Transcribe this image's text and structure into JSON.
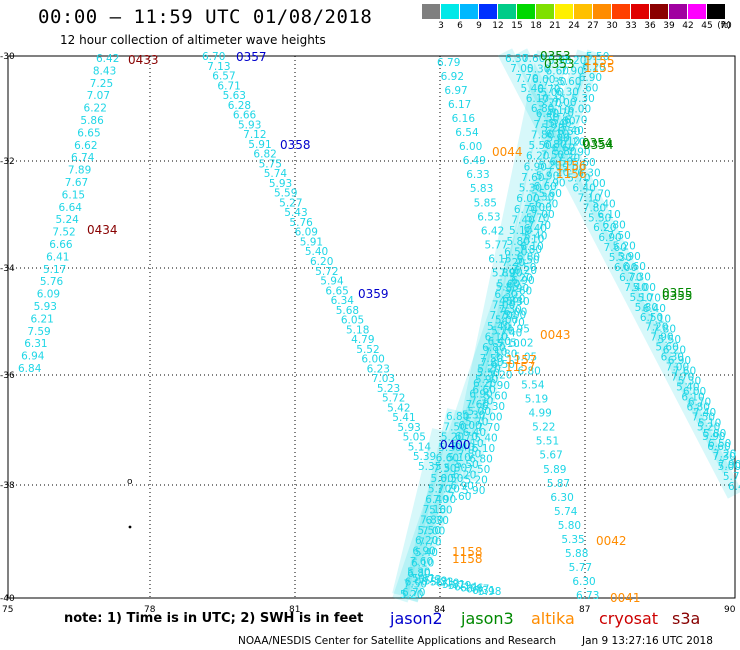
{
  "title": "00:00 – 11:59 UTC 01/08/2018",
  "subtitle": "12 hour collection of altimeter wave heights",
  "legend": {
    "levels": [
      "3",
      "6",
      "9",
      "12",
      "15",
      "18",
      "21",
      "24",
      "27",
      "30",
      "33",
      "36",
      "39",
      "42",
      "45",
      "70"
    ],
    "unit": "(ft)",
    "colors": [
      "#7f7f7f",
      "#00e8e8",
      "#00b8ff",
      "#0030ff",
      "#00cc88",
      "#00d800",
      "#7fe000",
      "#fff000",
      "#ffc000",
      "#ff8c00",
      "#ff4000",
      "#e00000",
      "#8b0000",
      "#a000a0",
      "#ff00ff",
      "#000000"
    ]
  },
  "axes": {
    "x_ticks": [
      "75",
      "78",
      "81",
      "84",
      "87",
      "90"
    ],
    "y_ticks": [
      "-30",
      "-32",
      "-34",
      "-36",
      "-38",
      "-40"
    ]
  },
  "note": "note:  1) Time is in UTC;  2) SWH is in feet",
  "satellites": [
    {
      "name": "jason2",
      "color": "#0000cc"
    },
    {
      "name": "jason3",
      "color": "#008800"
    },
    {
      "name": "altika",
      "color": "#ff8c00"
    },
    {
      "name": "cryosat",
      "color": "#cc0000"
    },
    {
      "name": "s3a",
      "color": "#880000"
    }
  ],
  "footer": "NOAA/NESDIS Center for Satellite Applications and Research",
  "footer_date": "Jan  9 13:27:16 UTC 2018",
  "time_labels": [
    {
      "text": "0433",
      "color": "#880000"
    },
    {
      "text": "0434",
      "color": "#880000"
    },
    {
      "text": "0357",
      "color": "#0000cc"
    },
    {
      "text": "0358",
      "color": "#0000cc"
    },
    {
      "text": "0359",
      "color": "#0000cc"
    },
    {
      "text": "0400",
      "color": "#0000cc"
    },
    {
      "text": "0353",
      "color": "#008800"
    },
    {
      "text": "0353",
      "color": "#008800"
    },
    {
      "text": "0354",
      "color": "#008800"
    },
    {
      "text": "0354",
      "color": "#008800"
    },
    {
      "text": "0355",
      "color": "#008800"
    },
    {
      "text": "0355",
      "color": "#008800"
    },
    {
      "text": "1155",
      "color": "#ff8c00"
    },
    {
      "text": "1155",
      "color": "#ff8c00"
    },
    {
      "text": "1156",
      "color": "#ff8c00"
    },
    {
      "text": "1156",
      "color": "#ff8c00"
    },
    {
      "text": "1157",
      "color": "#ff8c00"
    },
    {
      "text": "1157",
      "color": "#ff8c00"
    },
    {
      "text": "1158",
      "color": "#ff8c00"
    },
    {
      "text": "1158",
      "color": "#ff8c00"
    },
    {
      "text": "0044",
      "color": "#ff8c00"
    },
    {
      "text": "0043",
      "color": "#ff8c00"
    },
    {
      "text": "0042",
      "color": "#ff8c00"
    },
    {
      "text": "0041",
      "color": "#ff8c00"
    }
  ],
  "tracks": [
    [
      "6.42",
      "8.43",
      "7.25",
      "7.07",
      "6.22",
      "5.86",
      "6.65",
      "6.62",
      "6.74",
      "7.89",
      "7.67",
      "6.15",
      "6.64",
      "5.24",
      "7.52",
      "6.66",
      "6.41",
      "5.17",
      "5.76",
      "6.09",
      "5.93",
      "6.21",
      "7.59",
      "6.31",
      "6.94",
      "6.84"
    ],
    [
      "6.70",
      "7.13",
      "6.57",
      "6.71",
      "5.63",
      "6.28",
      "6.66",
      "5.93",
      "7.12",
      "5.91",
      "6.82",
      "5.75",
      "5.74",
      "5.93",
      "5.59",
      "5.27",
      "5.43",
      "5.76",
      "6.09",
      "5.91",
      "5.40",
      "6.20",
      "5.72",
      "5.94",
      "6.65",
      "6.34",
      "5.68",
      "6.05",
      "5.18",
      "4.79",
      "5.52",
      "6.00",
      "6.23",
      "7.03",
      "5.23",
      "5.72",
      "5.42",
      "5.41",
      "5.93",
      "5.05",
      "5.14",
      "5.39",
      "5.35"
    ],
    [
      "6.79",
      "6.92",
      "6.97",
      "6.17",
      "6.16",
      "6.54",
      "6.00",
      "6.49",
      "6.33",
      "5.83",
      "5.85",
      "6.53",
      "6.42",
      "5.77",
      "6.15",
      "5.89",
      "5.85",
      "4.84",
      "5.00",
      "4.95",
      "5.02",
      "5.05",
      "6.80",
      "5.54",
      "5.19",
      "4.99",
      "5.22",
      "5.51",
      "5.67",
      "5.89",
      "5.87",
      "6.30",
      "5.74",
      "5.80",
      "5.35",
      "5.88",
      "5.77",
      "6.30",
      "6.73"
    ],
    [
      "5.61",
      "5.73",
      "5.59",
      "5.33",
      "6.10",
      "5.81",
      "5.79",
      "6.14",
      "6.06",
      "6.87",
      "6.31",
      "5.98"
    ]
  ]
}
